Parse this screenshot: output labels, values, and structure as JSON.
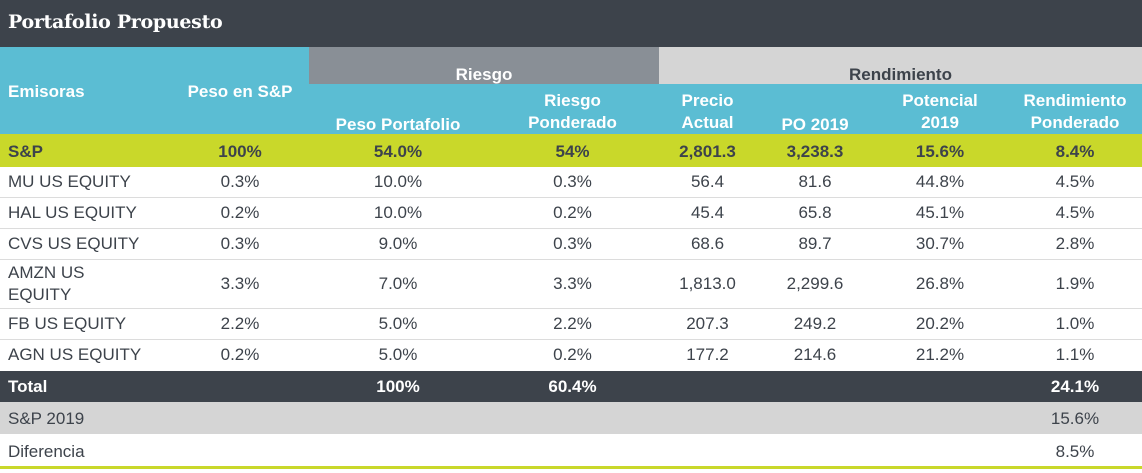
{
  "title": "Portafolio Propuesto",
  "headers": {
    "emisoras": "Emisoras",
    "peso_sp": "Peso en S&P",
    "riesgo_group": "Riesgo",
    "rendimiento_group": "Rendimiento",
    "peso_portafolio": "Peso Portafolio",
    "riesgo_ponderado_1": "Riesgo",
    "riesgo_ponderado_2": "Ponderado",
    "precio_actual_1": "Precio",
    "precio_actual_2": "Actual",
    "po_2019": "PO 2019",
    "potencial_1": "Potencial",
    "potencial_2": "2019",
    "rend_ponderado_1": "Rendimiento",
    "rend_ponderado_2": "Ponderado"
  },
  "sp_row": [
    "S&P",
    "100%",
    "54.0%",
    "54%",
    "2,801.3",
    "3,238.3",
    "15.6%",
    "8.4%"
  ],
  "rows": [
    [
      "MU US EQUITY",
      "0.3%",
      "10.0%",
      "0.3%",
      "56.4",
      "81.6",
      "44.8%",
      "4.5%"
    ],
    [
      "HAL US EQUITY",
      "0.2%",
      "10.0%",
      "0.2%",
      "45.4",
      "65.8",
      "45.1%",
      "4.5%"
    ],
    [
      "CVS US EQUITY",
      "0.3%",
      "9.0%",
      "0.3%",
      "68.6",
      "89.7",
      "30.7%",
      "2.8%"
    ],
    [
      "AMZN US",
      "3.3%",
      "7.0%",
      "3.3%",
      "1,813.0",
      "2,299.6",
      "26.8%",
      "1.9%"
    ],
    [
      "FB US EQUITY",
      "2.2%",
      "5.0%",
      "2.2%",
      "207.3",
      "249.2",
      "20.2%",
      "1.0%"
    ],
    [
      "AGN US EQUITY",
      "0.2%",
      "5.0%",
      "0.2%",
      "177.2",
      "214.6",
      "21.2%",
      "1.1%"
    ]
  ],
  "amzn_line2": "EQUITY",
  "total": {
    "label": "Total",
    "peso_portafolio": "100%",
    "riesgo_ponderado": "60.4%",
    "rend_ponderado": "24.1%"
  },
  "sp2019": {
    "label": "S&P 2019",
    "value": "15.6%"
  },
  "diferencia": {
    "label": "Diferencia",
    "value": "8.5%"
  },
  "colors": {
    "title_bg": "#3d434b",
    "header_cyan": "#5bbdd3",
    "header_gray": "#898f96",
    "header_light": "#d5d5d5",
    "sp_row_bg": "#c9d82a",
    "total_bg": "#3d434b",
    "sp2019_bg": "#d5d5d5",
    "bottom_line": "#c9d82a"
  }
}
